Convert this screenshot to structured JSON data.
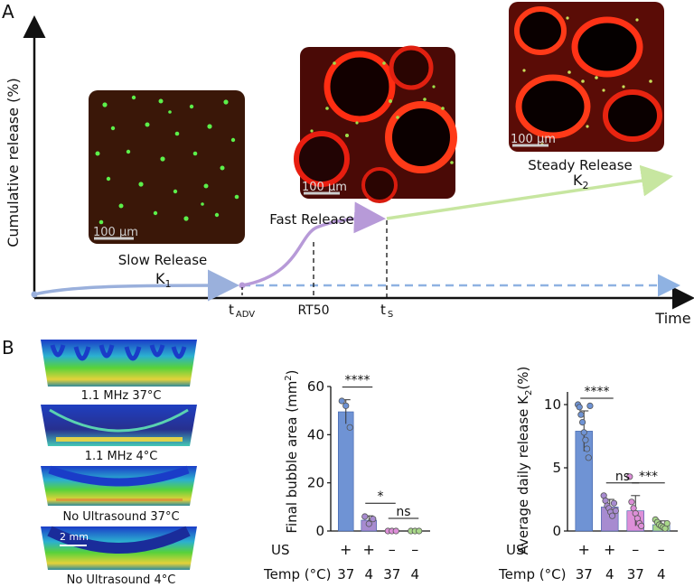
{
  "panel_a": {
    "label": "A",
    "ylabel": "Cumulative release (%)",
    "xlabel": "Time",
    "micrographs": [
      {
        "scale": "100 µm"
      },
      {
        "scale": "100 µm"
      },
      {
        "scale": "100 µm"
      }
    ],
    "phases": {
      "slow": "Slow Release",
      "slow_k": "K",
      "slow_k_sub": "1",
      "fast": "Fast Release",
      "steady": "Steady Release",
      "steady_k": "K",
      "steady_k_sub": "2"
    },
    "ticks": {
      "t_adv": "t",
      "t_adv_sub": "ADV",
      "rt50": "RT50",
      "t_s": "t",
      "t_s_sub": "S"
    },
    "colors": {
      "slow": "#9ab0dc",
      "fast": "#b79ad8",
      "steady": "#c7e6a0",
      "baseline": "#8fb2e2"
    }
  },
  "panel_b": {
    "label": "B",
    "thermal_scale": "2 mm",
    "thermal_images": [
      {
        "caption": "1.1 MHz 37°C"
      },
      {
        "caption": "1.1 MHz 4°C"
      },
      {
        "caption": "No Ultrasound 37°C"
      },
      {
        "caption": "No Ultrasound 4°C"
      }
    ],
    "row_labels": {
      "us": "US",
      "temp": "Temp (°C)"
    },
    "conditions": {
      "us": [
        "+",
        "+",
        "–",
        "–"
      ],
      "temp": [
        "37",
        "4",
        "37",
        "4"
      ]
    }
  },
  "chart_data": [
    {
      "type": "bar",
      "ylabel": "Final bubble area (mm²)",
      "ylabel_main": "Final bubble area (mm",
      "ylabel_sup": "2",
      "ylabel_end": ")",
      "ylim": [
        0,
        60
      ],
      "yticks": [
        "0",
        "20",
        "40",
        "60"
      ],
      "categories": [
        "+ / 37",
        "+ / 4",
        "– / 37",
        "– / 4"
      ],
      "values": [
        49.5,
        4.5,
        0,
        0
      ],
      "errors": [
        5,
        1.8,
        0,
        0
      ],
      "colors": [
        "#6f93d4",
        "#a78bd0",
        "#dd8fd8",
        "#a9d88a"
      ],
      "points": [
        [
          54,
          52,
          43
        ],
        [
          6,
          3,
          5
        ],
        [
          0,
          0,
          0
        ],
        [
          0,
          0,
          0
        ]
      ],
      "significance": [
        {
          "from": 0,
          "to": 1,
          "label": "****"
        },
        {
          "from": 1,
          "to": 2,
          "label": "*"
        },
        {
          "from": 2,
          "to": 3,
          "label": "ns"
        }
      ]
    },
    {
      "type": "bar",
      "ylabel": "Average daily release K₂(%)",
      "ylabel_main": "Average daily release K",
      "ylabel_sub": "2",
      "ylabel_end": "(%)",
      "ylim": [
        0,
        11
      ],
      "yticks": [
        "0",
        "5",
        "10"
      ],
      "categories": [
        "+ / 37",
        "+ / 4",
        "– / 37",
        "– / 4"
      ],
      "values": [
        7.9,
        1.9,
        1.6,
        0.5
      ],
      "errors": [
        1.6,
        0.6,
        1.2,
        0.3
      ],
      "colors": [
        "#6f93d4",
        "#a78bd0",
        "#dd8fd8",
        "#a9d88a"
      ],
      "points": [
        [
          10,
          9.8,
          9.2,
          8.6,
          7.8,
          7.2,
          6.5,
          5.8,
          9.9
        ],
        [
          2.8,
          2.4,
          2.0,
          1.8,
          1.5,
          1.2,
          2.2,
          1.6
        ],
        [
          4.3,
          2.3,
          1.8,
          1.4,
          1.0,
          0.6,
          0.4
        ],
        [
          0.9,
          0.7,
          0.5,
          0.4,
          0.3,
          0.2,
          0.6
        ]
      ],
      "significance": [
        {
          "from": 0,
          "to": 1,
          "label": "****"
        },
        {
          "from": 1,
          "to": 2,
          "label": "ns"
        },
        {
          "from": 2,
          "to": 3,
          "label": "***"
        }
      ]
    }
  ]
}
